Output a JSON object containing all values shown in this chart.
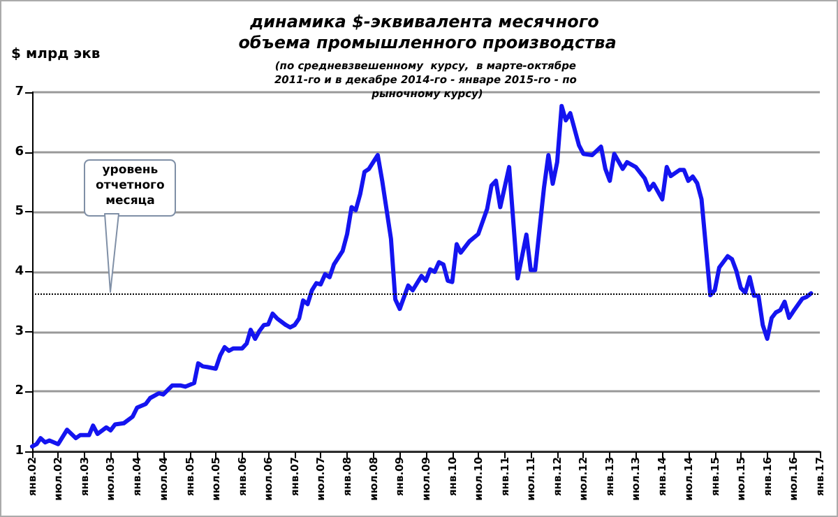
{
  "chart_data": {
    "type": "line",
    "title": "динамика $-эквивалента месячного объема промышленного производства",
    "subtitle": "(по средневзвешенному  курсу,  в марте-октябре 2011-го и в декабре 2014-го - январе 2015-го - по рыночному курсу)",
    "ylabel": "$ млрд экв",
    "x": [
      "2002-01",
      "2002-02",
      "2002-03",
      "2002-04",
      "2002-05",
      "2002-07",
      "2002-09",
      "2002-11",
      "2002-12",
      "2003-02",
      "2003-03",
      "2003-04",
      "2003-06",
      "2003-07",
      "2003-08",
      "2003-10",
      "2003-12",
      "2004-01",
      "2004-03",
      "2004-04",
      "2004-06",
      "2004-07",
      "2004-09",
      "2004-11",
      "2004-12",
      "2005-02",
      "2005-03",
      "2005-04",
      "2005-05",
      "2005-07",
      "2005-08",
      "2005-09",
      "2005-10",
      "2005-11",
      "2006-01",
      "2006-02",
      "2006-03",
      "2006-04",
      "2006-05",
      "2006-06",
      "2006-07",
      "2006-08",
      "2006-09",
      "2006-11",
      "2006-12",
      "2007-01",
      "2007-02",
      "2007-03",
      "2007-04",
      "2007-05",
      "2007-06",
      "2007-07",
      "2007-08",
      "2007-09",
      "2007-10",
      "2007-12",
      "2008-01",
      "2008-02",
      "2008-03",
      "2008-04",
      "2008-05",
      "2008-06",
      "2008-08",
      "2008-09",
      "2008-11",
      "2008-12",
      "2009-01",
      "2009-03",
      "2009-04",
      "2009-06",
      "2009-07",
      "2009-08",
      "2009-09",
      "2009-10",
      "2009-11",
      "2009-12",
      "2010-01",
      "2010-02",
      "2010-03",
      "2010-05",
      "2010-07",
      "2010-09",
      "2010-10",
      "2010-11",
      "2010-12",
      "2011-02",
      "2011-04",
      "2011-06",
      "2011-07",
      "2011-08",
      "2011-10",
      "2011-11",
      "2011-12",
      "2012-01",
      "2012-02",
      "2012-03",
      "2012-04",
      "2012-06",
      "2012-07",
      "2012-09",
      "2012-11",
      "2012-12",
      "2013-01",
      "2013-02",
      "2013-04",
      "2013-05",
      "2013-07",
      "2013-09",
      "2013-10",
      "2013-11",
      "2014-01",
      "2014-02",
      "2014-03",
      "2014-05",
      "2014-06",
      "2014-07",
      "2014-08",
      "2014-09",
      "2014-10",
      "2014-12",
      "2015-01",
      "2015-02",
      "2015-04",
      "2015-05",
      "2015-06",
      "2015-07",
      "2015-08",
      "2015-09",
      "2015-10",
      "2015-11",
      "2015-12",
      "2016-01",
      "2016-02",
      "2016-03",
      "2016-04",
      "2016-05",
      "2016-06",
      "2016-07",
      "2016-09",
      "2016-10",
      "2016-11"
    ],
    "series": [
      {
        "color": "#1414f0",
        "values": [
          1.08,
          1.12,
          1.22,
          1.15,
          1.18,
          1.12,
          1.36,
          1.22,
          1.27,
          1.27,
          1.43,
          1.29,
          1.4,
          1.35,
          1.45,
          1.47,
          1.58,
          1.73,
          1.79,
          1.89,
          1.97,
          1.95,
          2.1,
          2.1,
          2.08,
          2.14,
          2.47,
          2.42,
          2.41,
          2.38,
          2.6,
          2.74,
          2.68,
          2.72,
          2.72,
          2.8,
          3.03,
          2.88,
          3.01,
          3.11,
          3.12,
          3.3,
          3.22,
          3.11,
          3.07,
          3.11,
          3.22,
          3.52,
          3.46,
          3.69,
          3.81,
          3.79,
          3.96,
          3.91,
          4.12,
          4.35,
          4.63,
          5.08,
          5.03,
          5.3,
          5.67,
          5.72,
          5.95,
          5.52,
          4.55,
          3.54,
          3.38,
          3.77,
          3.69,
          3.93,
          3.85,
          4.04,
          4.0,
          4.16,
          4.12,
          3.85,
          3.83,
          4.46,
          4.32,
          4.51,
          4.63,
          5.05,
          5.44,
          5.52,
          5.08,
          5.75,
          3.89,
          4.62,
          4.03,
          4.03,
          5.4,
          5.95,
          5.47,
          5.83,
          6.77,
          6.53,
          6.65,
          6.11,
          5.97,
          5.95,
          6.09,
          5.72,
          5.52,
          5.97,
          5.72,
          5.83,
          5.75,
          5.56,
          5.37,
          5.47,
          5.21,
          5.75,
          5.6,
          5.7,
          5.7,
          5.52,
          5.59,
          5.48,
          5.21,
          3.61,
          3.69,
          4.07,
          4.26,
          4.21,
          4.01,
          3.73,
          3.65,
          3.91,
          3.6,
          3.6,
          3.11,
          2.88,
          3.23,
          3.32,
          3.36,
          3.5,
          3.23,
          3.34,
          3.55,
          3.58,
          3.64
        ]
      }
    ],
    "xlim": [
      "2002-01",
      "2017-01"
    ],
    "xticks": [
      {
        "value": "2002-01",
        "label": "янв.02"
      },
      {
        "value": "2002-07",
        "label": "июл.02"
      },
      {
        "value": "2003-01",
        "label": "янв.03"
      },
      {
        "value": "2003-07",
        "label": "июл.03"
      },
      {
        "value": "2004-01",
        "label": "янв.04"
      },
      {
        "value": "2004-07",
        "label": "июл.04"
      },
      {
        "value": "2005-01",
        "label": "янв.05"
      },
      {
        "value": "2005-07",
        "label": "июл.05"
      },
      {
        "value": "2006-01",
        "label": "янв.06"
      },
      {
        "value": "2006-07",
        "label": "июл.06"
      },
      {
        "value": "2007-01",
        "label": "янв.07"
      },
      {
        "value": "2007-07",
        "label": "июл.07"
      },
      {
        "value": "2008-01",
        "label": "янв.08"
      },
      {
        "value": "2008-07",
        "label": "июл.08"
      },
      {
        "value": "2009-01",
        "label": "янв.09"
      },
      {
        "value": "2009-07",
        "label": "июл.09"
      },
      {
        "value": "2010-01",
        "label": "янв.10"
      },
      {
        "value": "2010-07",
        "label": "июл.10"
      },
      {
        "value": "2011-01",
        "label": "янв.11"
      },
      {
        "value": "2011-07",
        "label": "июл.11"
      },
      {
        "value": "2012-01",
        "label": "янв.12"
      },
      {
        "value": "2012-07",
        "label": "июл.12"
      },
      {
        "value": "2013-01",
        "label": "янв.13"
      },
      {
        "value": "2013-07",
        "label": "июл.13"
      },
      {
        "value": "2014-01",
        "label": "янв.14"
      },
      {
        "value": "2014-07",
        "label": "июл.14"
      },
      {
        "value": "2015-01",
        "label": "янв.15"
      },
      {
        "value": "2015-07",
        "label": "июл.15"
      },
      {
        "value": "2016-01",
        "label": "янв.16"
      },
      {
        "value": "2016-07",
        "label": "июл.16"
      },
      {
        "value": "2017-01",
        "label": "янв.17"
      }
    ],
    "ylim": [
      1,
      7
    ],
    "yticks": [
      1,
      2,
      3,
      4,
      5,
      6,
      7
    ],
    "ref_lines": [
      {
        "axis": "y",
        "value": 3.64,
        "line_style": "dotted",
        "color": "#000000"
      }
    ],
    "annotations": [
      {
        "text": "уровень отчетного месяца",
        "x": "2003-07",
        "y": 3.64
      }
    ],
    "grid": "y",
    "marker": "none",
    "line_style": "solid"
  }
}
